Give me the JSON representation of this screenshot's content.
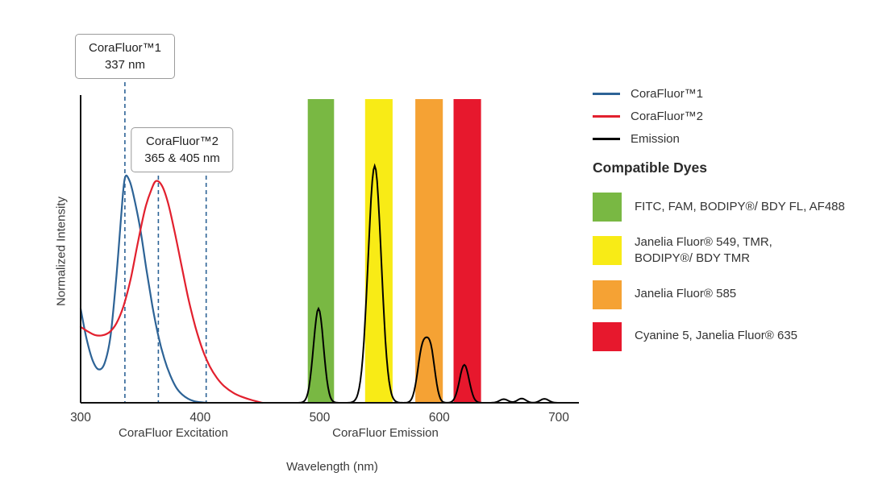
{
  "chart_data": {
    "type": "line",
    "title": "",
    "xlabel": "Wavelength (nm)",
    "ylabel": "Normalized Intensity",
    "x_ticks": [
      "300",
      "400",
      "500",
      "600",
      "700"
    ],
    "xlim": [
      300,
      717
    ],
    "ylim": [
      0,
      1.05
    ],
    "grid": false,
    "legend_position": "right",
    "axis_section_labels": [
      {
        "text": "CoraFluor Excitation"
      },
      {
        "text": "CoraFluor Emission"
      }
    ],
    "annotation_line_color": "#2d6396",
    "annotations": [
      {
        "label": "CoraFluor™1",
        "value": "337 nm",
        "lines_at_nm": [
          337
        ]
      },
      {
        "label": "CoraFluor™2",
        "value": "365 & 405 nm",
        "lines_at_nm": [
          365,
          405
        ]
      }
    ],
    "bands": [
      {
        "name": "fitc-fam-bodipy-af488",
        "color": "#79b843",
        "from_nm": 490,
        "to_nm": 512
      },
      {
        "name": "jf549-tmr-bodipy-tmr",
        "color": "#f8eb16",
        "from_nm": 538,
        "to_nm": 561
      },
      {
        "name": "jf585",
        "color": "#f5a234",
        "from_nm": 580,
        "to_nm": 603
      },
      {
        "name": "cy5-jf635",
        "color": "#e7182d",
        "from_nm": 612,
        "to_nm": 635
      }
    ],
    "series": [
      {
        "name": "CoraFluor™1",
        "kind": "excitation",
        "color": "#2d6396",
        "x": [
          300,
          305,
          310,
          315,
          320,
          325,
          330,
          334,
          337,
          341,
          345,
          350,
          355,
          360,
          365,
          370,
          375,
          380,
          385,
          390,
          395,
          400,
          406
        ],
        "y": [
          0.31,
          0.21,
          0.14,
          0.11,
          0.13,
          0.22,
          0.42,
          0.62,
          0.74,
          0.73,
          0.67,
          0.57,
          0.44,
          0.32,
          0.22,
          0.145,
          0.09,
          0.05,
          0.027,
          0.013,
          0.005,
          0.002,
          0
        ]
      },
      {
        "name": "CoraFluor™2",
        "kind": "excitation",
        "color": "#e2202e",
        "x": [
          300,
          306,
          312,
          318,
          324,
          330,
          336,
          342,
          348,
          354,
          359,
          363,
          368,
          373,
          378,
          384,
          390,
          396,
          402,
          408,
          414,
          420,
          428,
          436,
          444,
          452
        ],
        "y": [
          0.25,
          0.235,
          0.223,
          0.222,
          0.232,
          0.262,
          0.32,
          0.41,
          0.53,
          0.64,
          0.7,
          0.73,
          0.715,
          0.66,
          0.575,
          0.46,
          0.345,
          0.25,
          0.175,
          0.12,
          0.082,
          0.055,
          0.032,
          0.018,
          0.008,
          0
        ]
      },
      {
        "name": "Emission",
        "kind": "emission",
        "color": "#000000",
        "peaks": [
          {
            "center": 499,
            "height": 0.31,
            "width": 4.2
          },
          {
            "center": 546,
            "height": 0.78,
            "width": 5.5
          },
          {
            "center": 586,
            "height": 0.175,
            "width": 4.0
          },
          {
            "center": 593,
            "height": 0.155,
            "width": 3.6
          },
          {
            "center": 621,
            "height": 0.125,
            "width": 4.0
          },
          {
            "center": 654,
            "height": 0.012,
            "width": 3.5
          },
          {
            "center": 669,
            "height": 0.014,
            "width": 3.5
          },
          {
            "center": 688,
            "height": 0.013,
            "width": 3.5
          }
        ]
      }
    ]
  },
  "callouts": [
    {
      "title": "CoraFluor™1",
      "value": "337 nm"
    },
    {
      "title": "CoraFluor™2",
      "value": "365 & 405 nm"
    }
  ],
  "legend": {
    "items": [
      {
        "label": "CoraFluor™1",
        "color": "#2d6396"
      },
      {
        "label": "CoraFluor™2",
        "color": "#e2202e"
      },
      {
        "label": "Emission",
        "color": "#000000"
      }
    ]
  },
  "dyes": {
    "heading": "Compatible Dyes",
    "items": [
      {
        "color": "#79b843",
        "lines": [
          "FITC, FAM, BODIPY®/ BDY FL, AF488"
        ]
      },
      {
        "color": "#f8eb16",
        "lines": [
          "Janelia Fluor® 549, TMR,",
          "BODIPY®/ BDY TMR"
        ]
      },
      {
        "color": "#f5a234",
        "lines": [
          "Janelia Fluor® 585"
        ]
      },
      {
        "color": "#e7182d",
        "lines": [
          "Cyanine 5, Janelia Fluor® 635"
        ]
      }
    ]
  }
}
